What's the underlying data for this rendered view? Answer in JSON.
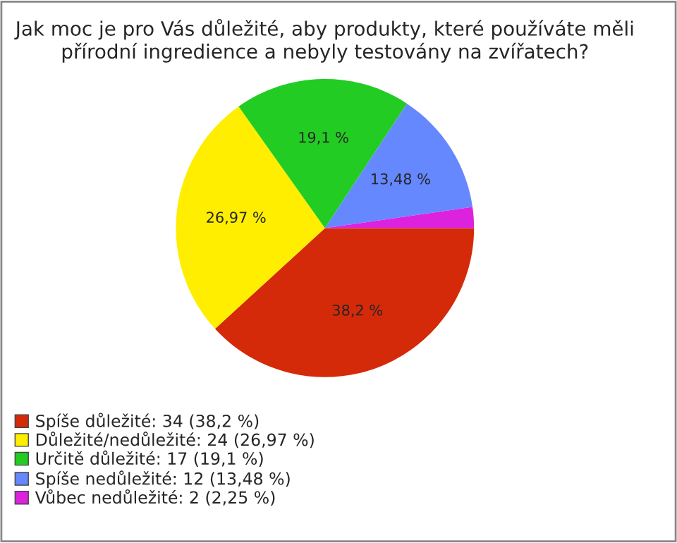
{
  "chart_data": {
    "type": "pie",
    "title": "Jak moc je pro Vás důležité, aby produkty, které používáte měli přírodní ingredience a nebyly testovány na zvířatech?",
    "categories": [
      "Spíše důležité: 34 (38,2 %)",
      "Důležité/nedůležité: 24 (26,97 %)",
      "Určitě důležité: 17 (19,1 %)",
      "Spíše nedůležité: 12 (13,48 %)",
      "Vůbec nedůležité: 2 (2,25 %)"
    ],
    "values": [
      38.2,
      26.97,
      19.1,
      13.48,
      2.25
    ],
    "colors": [
      "#d42a0a",
      "#ffee00",
      "#22cc22",
      "#6688ff",
      "#dd22dd"
    ],
    "value_labels": [
      "38,2 %",
      "26,97 %",
      "19,1 %",
      "13,48 %",
      null
    ],
    "legend": "bottom"
  }
}
